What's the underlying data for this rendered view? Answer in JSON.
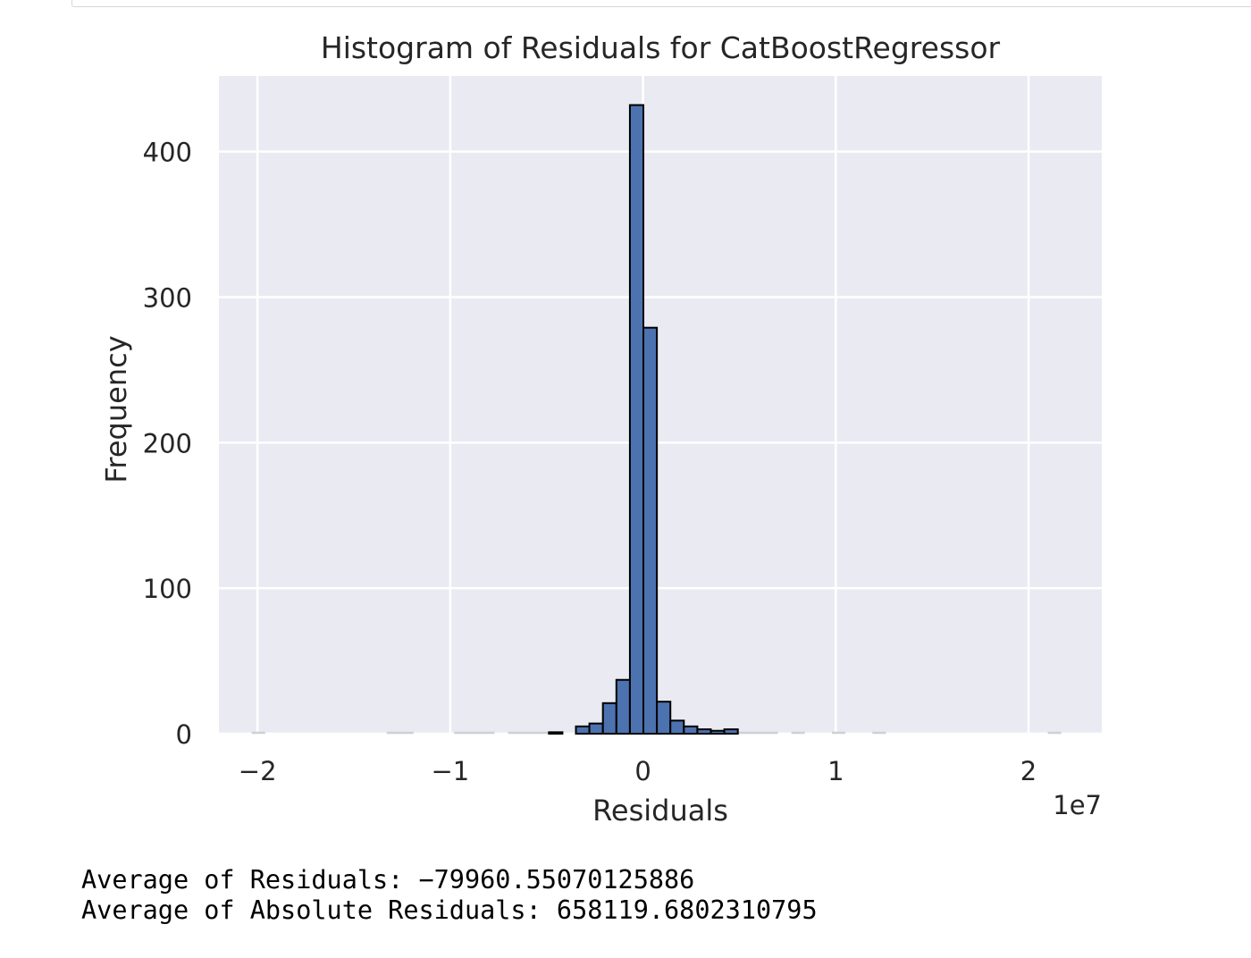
{
  "chart_data": {
    "type": "bar",
    "title": "Histogram of Residuals for CatBoostRegressor",
    "xlabel": "Residuals",
    "ylabel": "Frequency",
    "x_scale_label": "1e7",
    "xlim": [
      -2.2,
      2.38
    ],
    "ylim": [
      0,
      452
    ],
    "x_ticks": [
      -2,
      -1,
      0,
      1,
      2
    ],
    "x_tick_labels": [
      "−2",
      "−1",
      "0",
      "1",
      "2"
    ],
    "y_ticks": [
      0,
      100,
      200,
      300,
      400
    ],
    "y_tick_labels": [
      "0",
      "100",
      "200",
      "300",
      "400"
    ],
    "grid": true,
    "bar_color": "#4c72b0",
    "edge_color": "#000000",
    "bins": [
      {
        "x0": -0.488,
        "x1": -0.418,
        "value": 1
      },
      {
        "x0": -0.348,
        "x1": -0.278,
        "value": 5
      },
      {
        "x0": -0.278,
        "x1": -0.208,
        "value": 7
      },
      {
        "x0": -0.208,
        "x1": -0.138,
        "value": 21
      },
      {
        "x0": -0.138,
        "x1": -0.068,
        "value": 37
      },
      {
        "x0": -0.068,
        "x1": 0.002,
        "value": 432
      },
      {
        "x0": 0.002,
        "x1": 0.072,
        "value": 279
      },
      {
        "x0": 0.072,
        "x1": 0.142,
        "value": 22
      },
      {
        "x0": 0.142,
        "x1": 0.212,
        "value": 9
      },
      {
        "x0": 0.212,
        "x1": 0.282,
        "value": 5
      },
      {
        "x0": 0.282,
        "x1": 0.352,
        "value": 3
      },
      {
        "x0": 0.352,
        "x1": 0.422,
        "value": 2
      },
      {
        "x0": 0.422,
        "x1": 0.492,
        "value": 3
      }
    ],
    "near_zero_bins": [
      {
        "x0": -2.03,
        "x1": -1.96
      },
      {
        "x0": -1.33,
        "x1": -1.19
      },
      {
        "x0": -0.98,
        "x1": -0.77
      },
      {
        "x0": -0.7,
        "x1": -0.49
      },
      {
        "x0": 0.49,
        "x1": 0.7
      },
      {
        "x0": 0.77,
        "x1": 0.84
      },
      {
        "x0": 0.98,
        "x1": 1.05
      },
      {
        "x0": 1.19,
        "x1": 1.26
      },
      {
        "x0": 2.1,
        "x1": 2.17
      }
    ]
  },
  "output": {
    "line1": "Average of Residuals: −79960.55070125886",
    "line2": "Average of Absolute Residuals: 658119.6802310795"
  }
}
